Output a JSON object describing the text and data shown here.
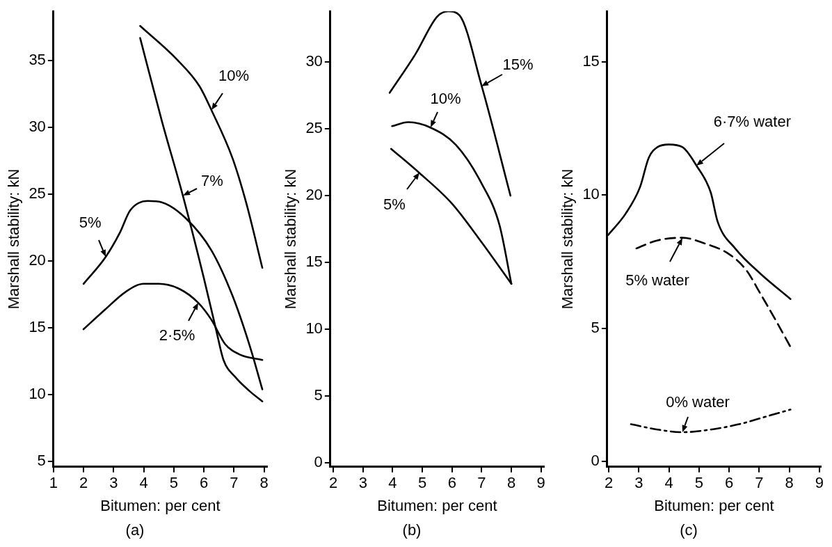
{
  "chart_data": [
    {
      "type": "line",
      "title": "(a)",
      "xlabel": "Bitumen: per cent",
      "ylabel": "Marshall stability: kN",
      "xlim": [
        1,
        8.1
      ],
      "xticks": [
        1,
        2,
        3,
        4,
        5,
        6,
        7,
        8
      ],
      "ylim": [
        4.6,
        38.7
      ],
      "yticks": [
        5,
        10,
        15,
        20,
        25,
        30,
        35
      ],
      "grid": false,
      "legend": false,
      "marker": "none",
      "line_style": "solid",
      "series": [
        {
          "color": "#000000",
          "x": [
            3.88,
            5.1,
            5.85,
            6.25,
            6.95,
            7.4,
            7.94
          ],
          "values": [
            37.6,
            35.1,
            33.1,
            31.3,
            27.7,
            24.4,
            19.5
          ]
        },
        {
          "color": "#000000",
          "x": [
            3.88,
            4.6,
            5.3,
            6.0,
            6.4,
            6.65,
            7.05,
            7.5,
            7.94
          ],
          "values": [
            36.7,
            30.5,
            24.9,
            18.7,
            14.9,
            12.6,
            11.3,
            10.3,
            9.5
          ]
        },
        {
          "color": "#000000",
          "x": [
            2.0,
            2.73,
            3.2,
            3.55,
            4.14,
            4.6,
            5.4,
            6.25,
            6.95,
            7.53,
            7.94
          ],
          "values": [
            18.3,
            20.3,
            22.1,
            23.8,
            24.5,
            24.4,
            23.2,
            20.8,
            17.4,
            13.6,
            10.4
          ]
        },
        {
          "color": "#000000",
          "x": [
            2.0,
            2.73,
            3.4,
            4.0,
            4.5,
            5.2,
            5.8,
            6.25,
            6.7,
            7.2,
            7.94
          ],
          "values": [
            14.9,
            16.4,
            17.7,
            18.3,
            18.3,
            17.9,
            16.9,
            15.6,
            13.8,
            13.0,
            12.6
          ]
        }
      ],
      "annotations": [
        {
          "text": "10%",
          "x": 6.25,
          "y": 31.3
        },
        {
          "text": "7%",
          "x": 5.3,
          "y": 24.9
        },
        {
          "text": "5%",
          "x": 2.73,
          "y": 20.3
        },
        {
          "text": "2·5%",
          "x": 5.8,
          "y": 16.9
        }
      ]
    },
    {
      "type": "line",
      "title": "(b)",
      "xlabel": "Bitumen: per cent",
      "ylabel": "Marshall stability: kN",
      "xlim": [
        1.9,
        9.1
      ],
      "xticks": [
        2,
        3,
        4,
        5,
        6,
        7,
        8,
        9
      ],
      "ylim": [
        -0.3,
        33.8
      ],
      "yticks": [
        0,
        5,
        10,
        15,
        20,
        25,
        30
      ],
      "grid": false,
      "legend": false,
      "marker": "none",
      "line_style": "solid",
      "series": [
        {
          "color": "#000000",
          "x": [
            3.9,
            4.77,
            5.5,
            5.88,
            6.25,
            7.0,
            7.97
          ],
          "values": [
            27.7,
            30.6,
            33.4,
            33.8,
            33.5,
            28.2,
            20.0
          ]
        },
        {
          "color": "#000000",
          "x": [
            3.98,
            4.53,
            5.27,
            6.13,
            7.0,
            7.6,
            8.0
          ],
          "values": [
            25.2,
            25.5,
            25.1,
            23.8,
            20.9,
            17.8,
            13.4
          ]
        },
        {
          "color": "#000000",
          "x": [
            3.95,
            4.9,
            6.0,
            7.0,
            8.0
          ],
          "values": [
            23.5,
            21.7,
            19.4,
            16.5,
            13.4
          ]
        }
      ],
      "annotations": [
        {
          "text": "15%",
          "x": 7.0,
          "y": 28.2
        },
        {
          "text": "10%",
          "x": 5.27,
          "y": 25.1
        },
        {
          "text": "5%",
          "x": 4.9,
          "y": 21.7
        }
      ]
    },
    {
      "type": "line",
      "title": "(c)",
      "xlabel": "Bitumen: per cent",
      "ylabel": "Marshall stability: kN",
      "xlim": [
        1.95,
        9.05
      ],
      "xticks": [
        2,
        3,
        4,
        5,
        6,
        7,
        8,
        9
      ],
      "ylim": [
        -0.2,
        16.9
      ],
      "yticks": [
        0,
        5,
        10,
        15
      ],
      "grid": false,
      "legend": false,
      "marker": "none",
      "series": [
        {
          "color": "#000000",
          "line_style": "solid",
          "x": [
            1.98,
            2.56,
            3.04,
            3.33,
            3.62,
            4.0,
            4.45,
            4.92,
            5.39,
            5.62,
            6.2,
            7.04,
            8.04
          ],
          "values": [
            8.5,
            9.3,
            10.3,
            11.4,
            11.8,
            11.9,
            11.8,
            11.1,
            10.1,
            9.0,
            8.0,
            7.05,
            6.1
          ]
        },
        {
          "color": "#000000",
          "line_style": "dashed",
          "x": [
            2.92,
            3.62,
            4.45,
            5.15,
            5.98,
            6.56,
            7.04,
            7.5,
            8.04
          ],
          "values": [
            8.0,
            8.3,
            8.4,
            8.2,
            7.8,
            7.2,
            6.3,
            5.4,
            4.3
          ]
        },
        {
          "color": "#000000",
          "line_style": "dashdot",
          "x": [
            2.74,
            3.62,
            4.45,
            5.39,
            6.33,
            7.27,
            8.04
          ],
          "values": [
            1.4,
            1.2,
            1.1,
            1.2,
            1.4,
            1.7,
            1.95
          ]
        }
      ],
      "annotations": [
        {
          "text": "6·7% water",
          "x": 4.92,
          "y": 11.1
        },
        {
          "text": "5% water",
          "x": 4.45,
          "y": 8.4
        },
        {
          "text": "0% water",
          "x": 4.45,
          "y": 1.1
        }
      ]
    }
  ]
}
